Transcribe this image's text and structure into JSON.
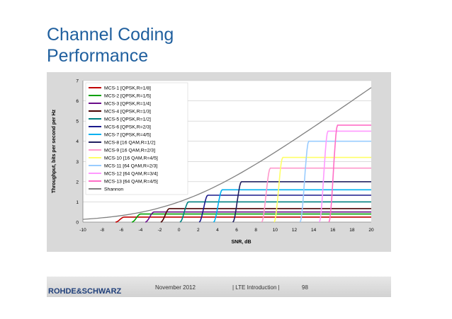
{
  "slide": {
    "title_line1": "Channel Coding",
    "title_line2": "Performance"
  },
  "footer": {
    "logo_text": "ROHDE&SCHWARZ",
    "date": "November 2012",
    "section": "| LTE Introduction |",
    "page": "98"
  },
  "colors": {
    "title": "#1f5f9e",
    "plot_background": "#ffffff",
    "outer_background": "#d9d9d9",
    "shannon": "#808080"
  },
  "chart_data": {
    "type": "line",
    "title": "",
    "xlabel": "SNR, dB",
    "ylabel": "Throughput, bits per second per Hz",
    "xlim": [
      -10,
      20
    ],
    "ylim": [
      0,
      7
    ],
    "xticks": [
      "-10",
      "-8",
      "-6",
      "-4",
      "-2",
      "0",
      "2",
      "4",
      "6",
      "8",
      "10",
      "12",
      "14",
      "16",
      "18",
      "20"
    ],
    "yticks": [
      "0",
      "1",
      "2",
      "3",
      "4",
      "5",
      "6",
      "7"
    ],
    "grid": "horizontal",
    "legend_position": "top-left",
    "series": [
      {
        "name": "MCS-1 [QPSK,R=1/8]",
        "color": "#c00000",
        "threshold_snr": -5.7,
        "max_throughput": 0.25
      },
      {
        "name": "MCS-2 [QPSK,R=1/5]",
        "color": "#00a000",
        "threshold_snr": -4.0,
        "max_throughput": 0.4
      },
      {
        "name": "MCS-3 [QPSK,R=1/4]",
        "color": "#6a0d8a",
        "threshold_snr": -2.6,
        "max_throughput": 0.5
      },
      {
        "name": "MCS-4 [QPSK,R=1/3]",
        "color": "#4a0000",
        "threshold_snr": -1.0,
        "max_throughput": 0.67
      },
      {
        "name": "MCS-5 [QPSK,R=1/2]",
        "color": "#008080",
        "threshold_snr": 1.0,
        "max_throughput": 1.0
      },
      {
        "name": "MCS-6 [QPSK,R=2/3]",
        "color": "#1a1a8c",
        "threshold_snr": 3.0,
        "max_throughput": 1.33
      },
      {
        "name": "MCS-7 [QPSK,R=4/5]",
        "color": "#00b0f0",
        "threshold_snr": 4.5,
        "max_throughput": 1.6
      },
      {
        "name": "MCS-8 [16 QAM,R=1/2]",
        "color": "#202060",
        "threshold_snr": 6.5,
        "max_throughput": 2.0
      },
      {
        "name": "MCS-9 [16 QAM,R=2/3]",
        "color": "#ff99cc",
        "threshold_snr": 9.5,
        "max_throughput": 2.67
      },
      {
        "name": "MCS-10 [16 QAM,R=4/5]",
        "color": "#ffff66",
        "threshold_snr": 10.8,
        "max_throughput": 3.2
      },
      {
        "name": "MCS-11 [64 QAM,R=2/3]",
        "color": "#99ccff",
        "threshold_snr": 13.5,
        "max_throughput": 4.0
      },
      {
        "name": "MCS-12 [64 QAM,R=3/4]",
        "color": "#ff99ff",
        "threshold_snr": 15.5,
        "max_throughput": 4.5
      },
      {
        "name": "MCS-13 [64 QAM,R=4/5]",
        "color": "#ff6ec7",
        "threshold_snr": 16.5,
        "max_throughput": 4.8
      },
      {
        "name": "Shannon",
        "color": "#808080",
        "type": "shannon",
        "x": [
          -10,
          -5,
          0,
          5,
          10,
          15,
          20
        ],
        "y": [
          0.14,
          0.4,
          1.0,
          2.06,
          3.46,
          5.03,
          6.66
        ]
      }
    ]
  }
}
